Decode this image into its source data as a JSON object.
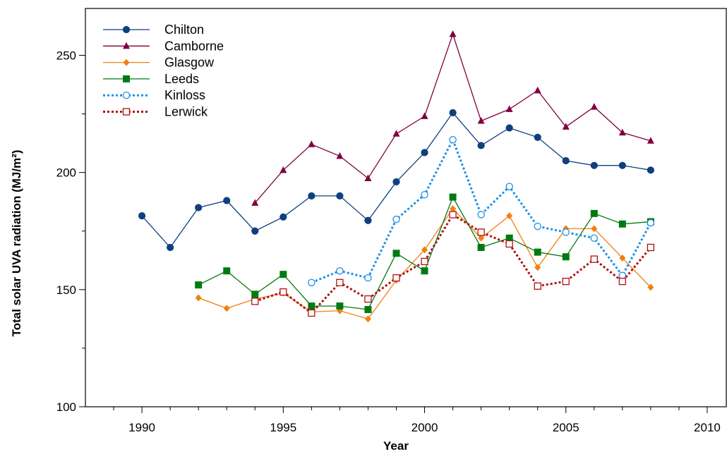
{
  "chart_data": {
    "type": "line",
    "xlabel": "Year",
    "ylabel": "Total solar UVA radiation (MJ/m²)",
    "xlim": [
      1988,
      2010.7
    ],
    "ylim": [
      100,
      270
    ],
    "x_ticks": [
      1990,
      1995,
      2000,
      2005,
      2010
    ],
    "y_ticks": [
      100,
      150,
      200,
      250
    ],
    "legend_position": "top-left",
    "grid": false,
    "series": [
      {
        "name": "Chilton",
        "color": "#0f3f7f",
        "line": "solid",
        "marker": "circle-filled",
        "x": [
          1990,
          1991,
          1992,
          1993,
          1994,
          1995,
          1996,
          1997,
          1998,
          1999,
          2000,
          2001,
          2002,
          2003,
          2004,
          2005,
          2006,
          2007,
          2008
        ],
        "y": [
          181.5,
          168,
          185,
          188,
          175,
          181,
          190,
          190,
          179.5,
          196,
          208.5,
          225.5,
          211.5,
          219,
          215,
          205,
          203,
          203,
          201
        ]
      },
      {
        "name": "Camborne",
        "color": "#800040",
        "line": "solid",
        "marker": "triangle-filled",
        "x": [
          1994,
          1995,
          1996,
          1997,
          1998,
          1999,
          2000,
          2001,
          2002,
          2003,
          2004,
          2005,
          2006,
          2007,
          2008
        ],
        "y": [
          187,
          201,
          212,
          207,
          197.5,
          216.5,
          224,
          259,
          222,
          227,
          235,
          219.5,
          228,
          217,
          213.5
        ]
      },
      {
        "name": "Glasgow",
        "color": "#f08010",
        "line": "solid",
        "marker": "diamond-filled",
        "x": [
          1992,
          1993,
          1994,
          1995,
          1996,
          1997,
          1998,
          1999,
          2000,
          2001,
          2002,
          2003,
          2004,
          2005,
          2006,
          2007,
          2008
        ],
        "y": [
          146.5,
          142,
          146,
          148.5,
          140.5,
          141,
          137.5,
          154,
          167,
          184.5,
          172,
          181.5,
          159.5,
          176,
          176,
          163.5,
          151
        ]
      },
      {
        "name": "Leeds",
        "color": "#007a10",
        "line": "solid",
        "marker": "square-filled",
        "x": [
          1992,
          1993,
          1994,
          1995,
          1996,
          1997,
          1998,
          1999,
          2000,
          2001,
          2002,
          2003,
          2004,
          2005,
          2006,
          2007,
          2008
        ],
        "y": [
          152,
          158,
          148,
          156.5,
          143,
          143,
          141.5,
          165.5,
          158,
          189.5,
          168,
          172,
          166,
          164,
          182.5,
          178,
          179
        ]
      },
      {
        "name": "Kinloss",
        "color": "#1e90e6",
        "line": "dotted",
        "marker": "circle-open",
        "x": [
          1996,
          1997,
          1998,
          1999,
          2000,
          2001,
          2002,
          2003,
          2004,
          2005,
          2006,
          2007,
          2008
        ],
        "y": [
          153,
          158,
          155,
          180,
          190.5,
          214,
          182,
          194,
          177,
          174.5,
          172,
          156,
          178.5
        ]
      },
      {
        "name": "Lerwick",
        "color": "#b01010",
        "line": "dotted",
        "marker": "square-open",
        "x": [
          1994,
          1995,
          1996,
          1997,
          1998,
          1999,
          2000,
          2001,
          2002,
          2003,
          2004,
          2005,
          2006,
          2007,
          2008
        ],
        "y": [
          145,
          149,
          140,
          153,
          146,
          155,
          162,
          182,
          174.5,
          169.5,
          151.5,
          153.5,
          163,
          153.5,
          168
        ]
      }
    ]
  }
}
